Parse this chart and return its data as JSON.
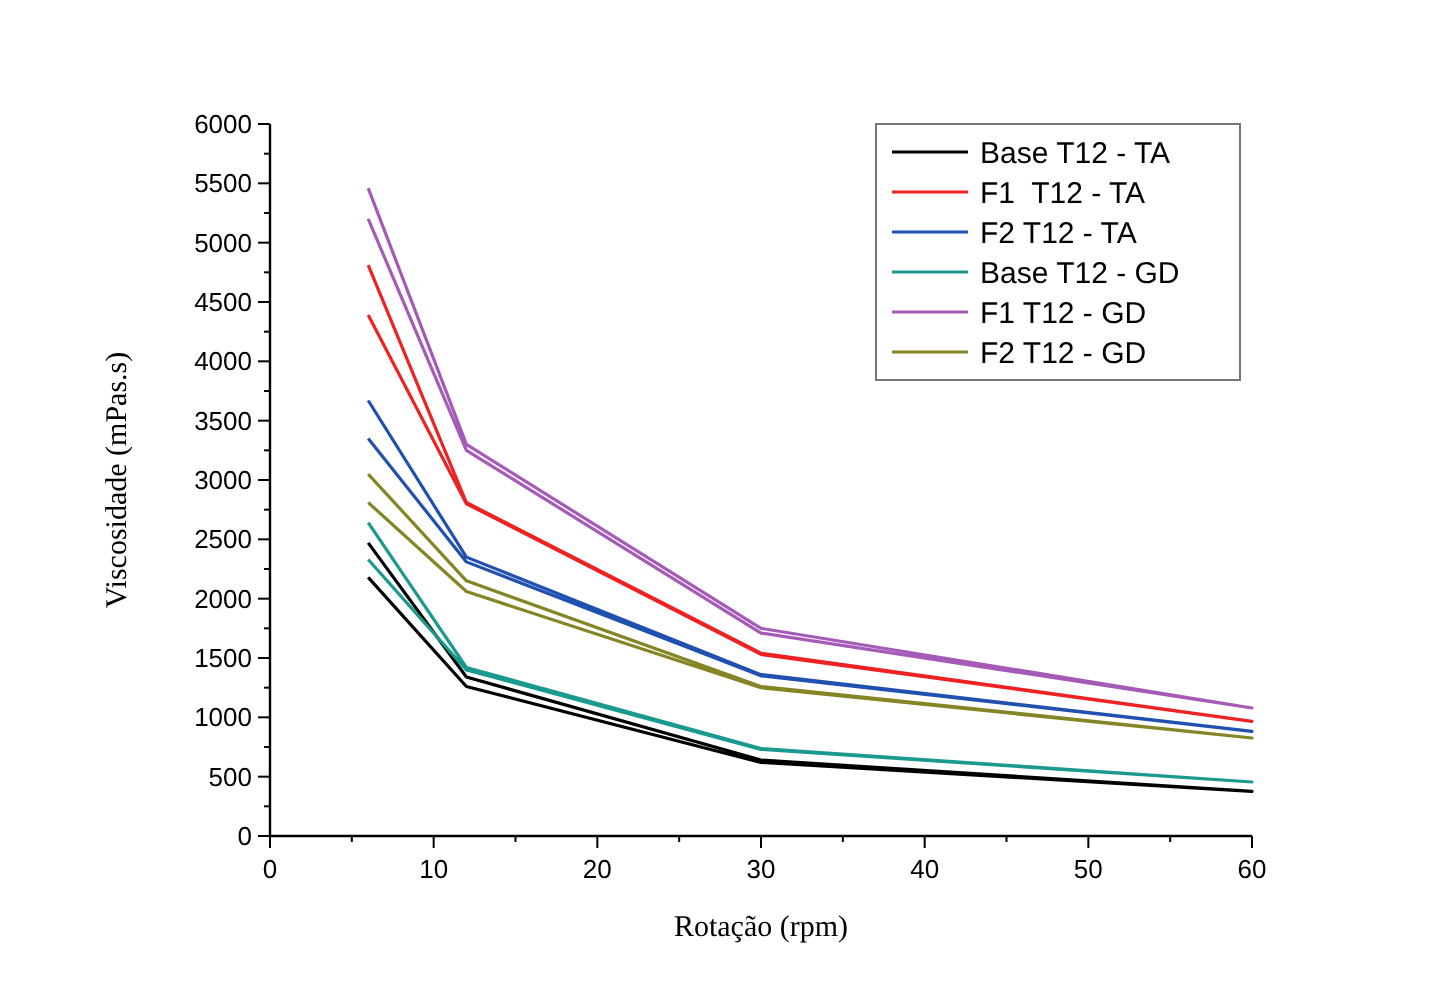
{
  "chart_data": {
    "type": "line",
    "xlabel": "Rotação (rpm)",
    "ylabel": "Viscosidade (mPas.s)",
    "xlim": [
      0,
      60
    ],
    "ylim": [
      0,
      6000
    ],
    "xticks": [
      0,
      {
        "value": 5,
        "label": null
      },
      10,
      {
        "value": 15,
        "label": null
      },
      20,
      {
        "value": 25,
        "label": null
      },
      30,
      {
        "value": 35,
        "label": null
      },
      40,
      {
        "value": 45,
        "label": null
      },
      50,
      {
        "value": 55,
        "label": null
      },
      60
    ],
    "yticks": [
      0,
      {
        "value": 250,
        "label": null
      },
      500,
      {
        "value": 750,
        "label": null
      },
      1000,
      {
        "value": 1250,
        "label": null
      },
      1500,
      {
        "value": 1750,
        "label": null
      },
      2000,
      {
        "value": 2250,
        "label": null
      },
      2500,
      {
        "value": 2750,
        "label": null
      },
      3000,
      {
        "value": 3250,
        "label": null
      },
      3500,
      {
        "value": 3750,
        "label": null
      },
      4000,
      {
        "value": 4250,
        "label": null
      },
      4500,
      {
        "value": 4750,
        "label": null
      },
      5000,
      {
        "value": 5250,
        "label": null
      },
      5500,
      {
        "value": 5750,
        "label": null
      },
      6000
    ],
    "x": [
      6,
      12,
      30,
      60,
      30,
      12,
      6
    ],
    "legend": "top right",
    "grid": false,
    "marker": "none",
    "line_style": "solid",
    "series": [
      {
        "name": "Base T12 - TA",
        "color": "#000000",
        "values": [
          2470,
          1340,
          640,
          376,
          620,
          1260,
          2180
        ]
      },
      {
        "name": "F1  T12 - TA",
        "color": "#ee2222",
        "values": [
          4810,
          2810,
          1540,
          966,
          1530,
          2800,
          4390
        ]
      },
      {
        "name": "F2 T12 - TA",
        "color": "#2050b0",
        "values": [
          3670,
          2350,
          1360,
          882,
          1350,
          2310,
          3350
        ]
      },
      {
        "name": "Base T12 - GD",
        "color": "#1a9a8f",
        "values": [
          2640,
          1420,
          737,
          455,
          730,
          1400,
          2330
        ]
      },
      {
        "name": "F1 T12 - GD",
        "color": "#a55ab8",
        "values": [
          5460,
          3300,
          1750,
          1079,
          1710,
          3250,
          5200
        ]
      },
      {
        "name": "F2 T12 - GD",
        "color": "#858525",
        "values": [
          3050,
          2150,
          1260,
          826,
          1250,
          2060,
          2810
        ]
      }
    ]
  }
}
